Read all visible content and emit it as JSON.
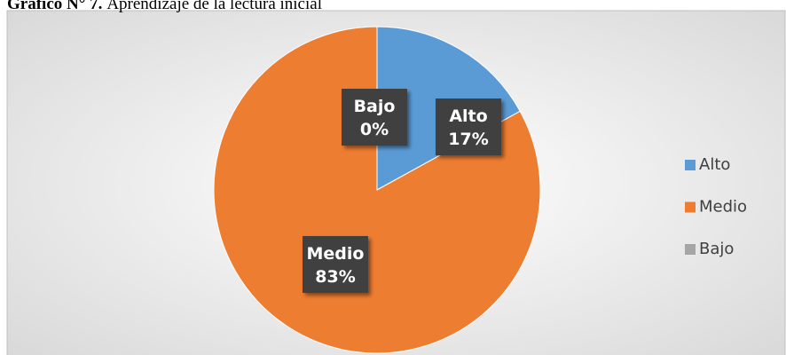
{
  "chart_data": {
    "type": "pie",
    "title_label": "Gráfico N° 7.",
    "title": "Aprendizaje de la lectura inicial",
    "categories": [
      "Alto",
      "Medio",
      "Bajo"
    ],
    "values": [
      17,
      83,
      0
    ],
    "value_labels": [
      "17%",
      "83%",
      "0%"
    ],
    "colors": [
      "#5b9bd5",
      "#ed7d31",
      "#a5a5a5"
    ],
    "legend": "right"
  }
}
